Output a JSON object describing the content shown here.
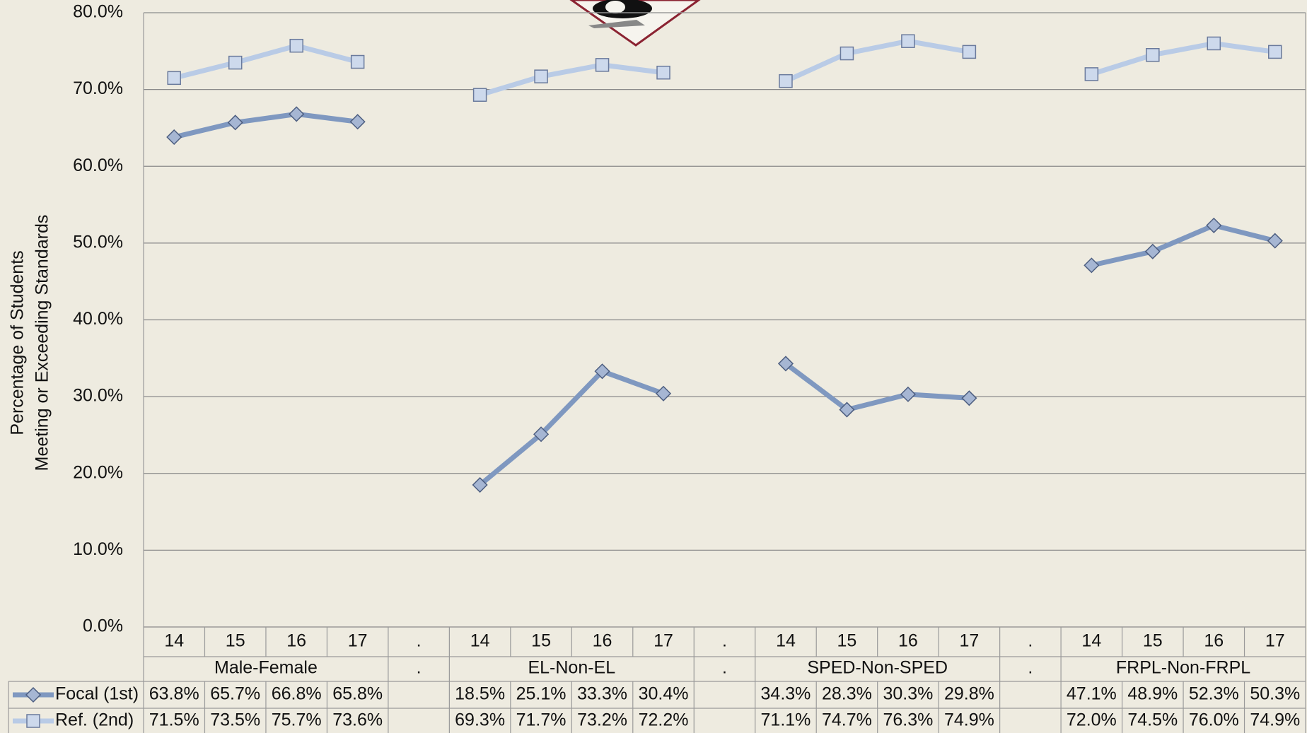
{
  "chart_data": {
    "type": "line",
    "y_label": [
      "Percentage of Students",
      "Meeting or Exceeding Standards"
    ],
    "categories": [
      "14",
      "15",
      "16",
      "17",
      ".",
      "14",
      "15",
      "16",
      "17",
      ".",
      "14",
      "15",
      "16",
      "17",
      ".",
      "14",
      "15",
      "16",
      "17"
    ],
    "group_labels": [
      "Male-Female",
      ".",
      "EL-Non-EL",
      ".",
      "SPED-Non-SPED",
      ".",
      "FRPL-Non-FRPL"
    ],
    "series": [
      {
        "name": "Focal (1st)",
        "color": "#7f98c0",
        "marker": "diamond",
        "values": [
          63.8,
          65.7,
          66.8,
          65.8,
          null,
          18.5,
          25.1,
          33.3,
          30.4,
          null,
          34.3,
          28.3,
          30.3,
          29.8,
          null,
          47.1,
          48.9,
          52.3,
          50.3
        ],
        "value_labels": [
          "63.8%",
          "65.7%",
          "66.8%",
          "65.8%",
          null,
          "18.5%",
          "25.1%",
          "33.3%",
          "30.4%",
          null,
          "34.3%",
          "28.3%",
          "30.3%",
          "29.8%",
          null,
          "47.1%",
          "48.9%",
          "52.3%",
          "50.3%"
        ]
      },
      {
        "name": "Ref. (2nd)",
        "color": "#b9cbe6",
        "marker": "square",
        "values": [
          71.5,
          73.5,
          75.7,
          73.6,
          null,
          69.3,
          71.7,
          73.2,
          72.2,
          null,
          71.1,
          74.7,
          76.3,
          74.9,
          null,
          72.0,
          74.5,
          76.0,
          74.9
        ],
        "value_labels": [
          "71.5%",
          "73.5%",
          "75.7%",
          "73.6%",
          null,
          "69.3%",
          "71.7%",
          "73.2%",
          "72.2%",
          null,
          "71.1%",
          "74.7%",
          "76.3%",
          "74.9%",
          null,
          "72.0%",
          "74.5%",
          "76.0%",
          "74.9%"
        ]
      }
    ],
    "ylim": [
      0,
      80
    ],
    "yticks": [
      {
        "value": 0,
        "label": "0.0%"
      },
      {
        "value": 10,
        "label": "10.0%"
      },
      {
        "value": 20,
        "label": "20.0%"
      },
      {
        "value": 30,
        "label": "30.0%"
      },
      {
        "value": 40,
        "label": "40.0%"
      },
      {
        "value": 50,
        "label": "50.0%"
      },
      {
        "value": 60,
        "label": "60.0%"
      },
      {
        "value": 70,
        "label": "70.0%"
      },
      {
        "value": 80,
        "label": "80.0%"
      }
    ],
    "grid": true
  }
}
